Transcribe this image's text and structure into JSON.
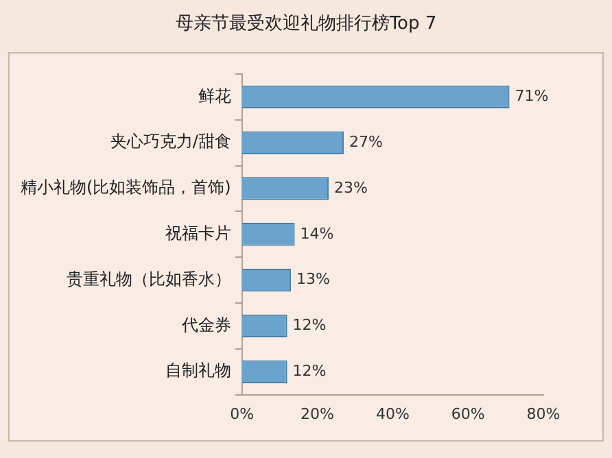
{
  "chart_data": {
    "type": "bar",
    "orientation": "horizontal",
    "title": "母亲节最受欢迎礼物排行榜Top 7",
    "categories": [
      "鲜花",
      "夹心巧克力/甜食",
      "精小礼物(比如装饰品，首饰)",
      "祝福卡片",
      "贵重礼物（比如香水）",
      "代金券",
      "自制礼物"
    ],
    "values": [
      71,
      27,
      23,
      14,
      13,
      12,
      12
    ],
    "value_labels": [
      "71%",
      "27%",
      "23%",
      "14%",
      "13%",
      "12%",
      "12%"
    ],
    "color": "#6aa3cc",
    "xlim": [
      0,
      80
    ],
    "xticks": [
      {
        "value": 0,
        "label": "0%"
      },
      {
        "value": 20,
        "label": "20%"
      },
      {
        "value": 40,
        "label": "40%"
      },
      {
        "value": 60,
        "label": "60%"
      },
      {
        "value": 80,
        "label": "80%"
      }
    ],
    "grid": false,
    "legend": false
  }
}
